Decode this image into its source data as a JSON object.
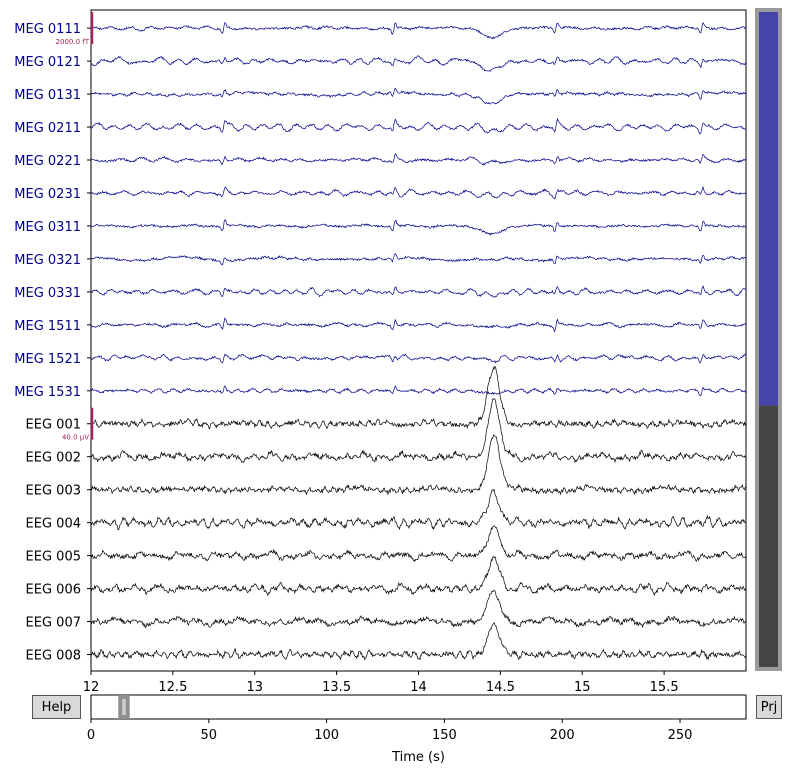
{
  "buttons": {
    "help_label": "Help",
    "proj_label": "Prj"
  },
  "chart_data": {
    "type": "line",
    "time_axis": {
      "xlim": [
        12.0,
        16.0
      ],
      "ticks": [
        12,
        12.5,
        13,
        13.5,
        14,
        14.5,
        15,
        15.5
      ],
      "tick_labels": [
        "12",
        "12.5",
        "13",
        "13.5",
        "14",
        "14.5",
        "15",
        "15.5"
      ]
    },
    "overview_axis": {
      "xlim": [
        0,
        278
      ],
      "ticks": [
        0,
        50,
        100,
        150,
        200,
        250
      ],
      "tick_labels": [
        "0",
        "50",
        "100",
        "150",
        "200",
        "250"
      ],
      "xlabel": "Time (s)",
      "window_start": 12.0,
      "window_duration": 4.0
    },
    "channel_types": {
      "meg": {
        "color": "#00008b",
        "scale_label": "2000.0 fT"
      },
      "eeg": {
        "color": "#000000",
        "scale_label": "40.0 µV"
      }
    },
    "scalebar_color": "#a0245e",
    "channels": [
      {
        "name": "MEG 0111",
        "type": "meg"
      },
      {
        "name": "MEG 0121",
        "type": "meg"
      },
      {
        "name": "MEG 0131",
        "type": "meg"
      },
      {
        "name": "MEG 0211",
        "type": "meg"
      },
      {
        "name": "MEG 0221",
        "type": "meg"
      },
      {
        "name": "MEG 0231",
        "type": "meg"
      },
      {
        "name": "MEG 0311",
        "type": "meg"
      },
      {
        "name": "MEG 0321",
        "type": "meg"
      },
      {
        "name": "MEG 0331",
        "type": "meg"
      },
      {
        "name": "MEG 1511",
        "type": "meg"
      },
      {
        "name": "MEG 1521",
        "type": "meg"
      },
      {
        "name": "MEG 1531",
        "type": "meg"
      },
      {
        "name": "EEG 001",
        "type": "eeg"
      },
      {
        "name": "EEG 002",
        "type": "eeg"
      },
      {
        "name": "EEG 003",
        "type": "eeg"
      },
      {
        "name": "EEG 004",
        "type": "eeg"
      },
      {
        "name": "EEG 005",
        "type": "eeg"
      },
      {
        "name": "EEG 006",
        "type": "eeg"
      },
      {
        "name": "EEG 007",
        "type": "eeg"
      },
      {
        "name": "EEG 008",
        "type": "eeg"
      }
    ],
    "vertical_scrollbar": {
      "meg_color": "#4444aa",
      "eeg_color": "#444444",
      "meg_fraction": 0.6
    }
  }
}
